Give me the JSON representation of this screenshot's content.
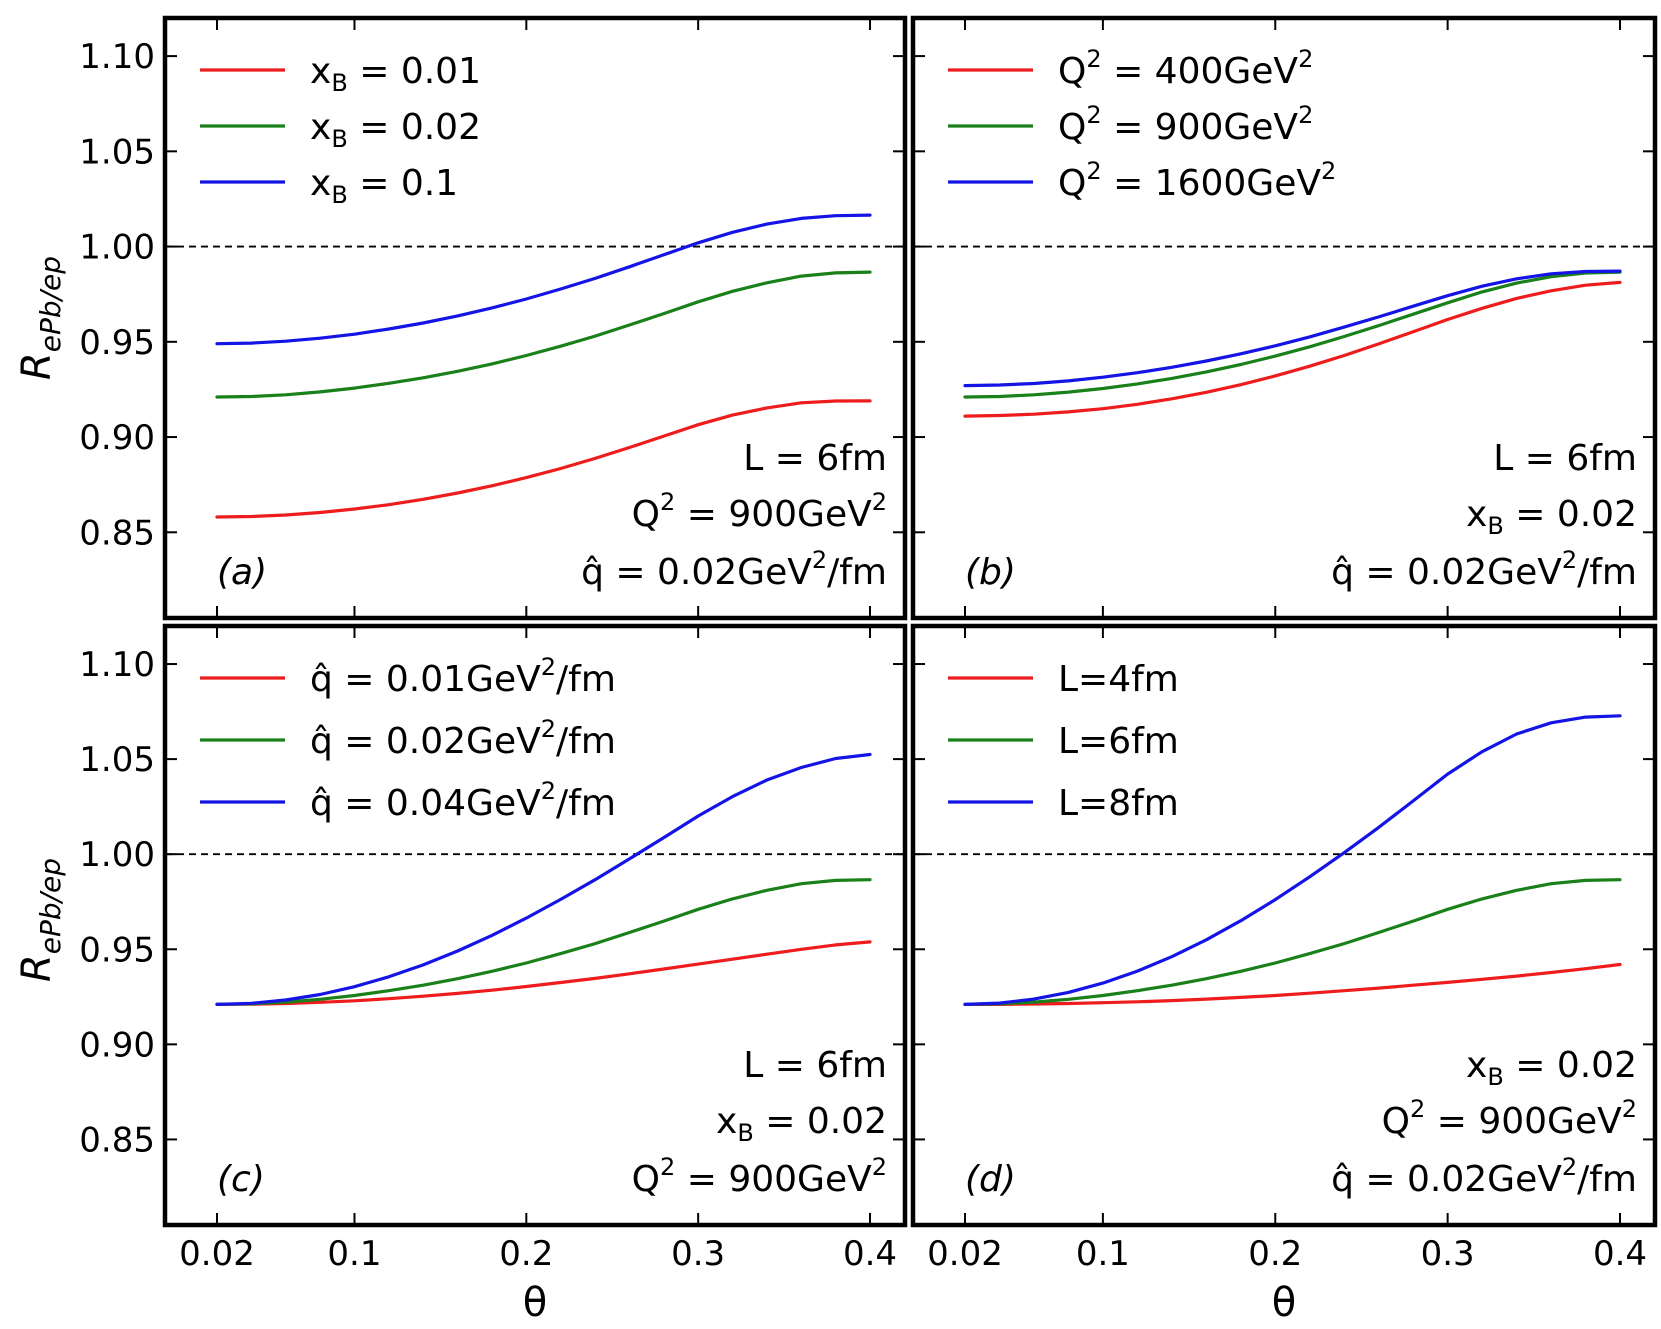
{
  "chart_data": {
    "type": "line",
    "x_axis_label": "θ",
    "y_axis_label": {
      "main": "R",
      "sub": "ePb/ep"
    },
    "x_ticks": [
      0.02,
      0.1,
      0.2,
      0.3,
      0.4
    ],
    "x_tick_labels": [
      "0.02",
      "0.1",
      "0.2",
      "0.3",
      "0.4"
    ],
    "y_ticks": [
      0.85,
      0.9,
      0.95,
      1.0,
      1.05,
      1.1
    ],
    "y_tick_labels": [
      "0.85",
      "0.90",
      "0.95",
      "1.00",
      "1.05",
      "1.10"
    ],
    "xlim": [
      0.0,
      0.42
    ],
    "ylim": [
      0.805,
      1.12
    ],
    "reference_line": 1.0,
    "x": [
      0.02,
      0.04,
      0.06,
      0.08,
      0.1,
      0.12,
      0.14,
      0.16,
      0.18,
      0.2,
      0.22,
      0.24,
      0.26,
      0.28,
      0.3,
      0.32,
      0.34,
      0.36,
      0.38,
      0.4
    ],
    "colors": {
      "red": "#ee1c1c",
      "green": "#1a801a",
      "blue": "#1414e6"
    },
    "panels": [
      {
        "id": "a",
        "label": "(a)",
        "series": [
          {
            "name": "x_B = 0.01",
            "legend": {
              "main": "x",
              "sub": "B",
              "rest": " = 0.01"
            },
            "color": "#ee1c1c",
            "values": [
              0.858,
              0.8583,
              0.8591,
              0.8604,
              0.8622,
              0.8645,
              0.8673,
              0.8706,
              0.8744,
              0.8787,
              0.8835,
              0.8888,
              0.8945,
              0.9005,
              0.9065,
              0.9115,
              0.9153,
              0.918,
              0.9189,
              0.919
            ]
          },
          {
            "name": "x_B = 0.02",
            "legend": {
              "main": "x",
              "sub": "B",
              "rest": " = 0.02"
            },
            "color": "#1a801a",
            "values": [
              0.921,
              0.9213,
              0.9222,
              0.9237,
              0.9257,
              0.9282,
              0.9311,
              0.9345,
              0.9384,
              0.9428,
              0.9477,
              0.953,
              0.9588,
              0.9648,
              0.971,
              0.9765,
              0.981,
              0.9845,
              0.9862,
              0.9866
            ]
          },
          {
            "name": "x_B = 0.1",
            "legend": {
              "main": "x",
              "sub": "B",
              "rest": " = 0.1"
            },
            "color": "#1414e6",
            "values": [
              0.949,
              0.9493,
              0.9503,
              0.9519,
              0.954,
              0.9567,
              0.9599,
              0.9636,
              0.9678,
              0.9725,
              0.9777,
              0.9833,
              0.9894,
              0.9957,
              1.002,
              1.0075,
              1.0118,
              1.0148,
              1.0162,
              1.0165
            ]
          }
        ],
        "annotations": [
          [
            {
              "t": "L = 6fm"
            }
          ],
          [
            {
              "t": "Q"
            },
            {
              "t": "2",
              "sup": true
            },
            {
              "t": " = 900GeV"
            },
            {
              "t": "2",
              "sup": true
            }
          ],
          [
            {
              "t": "q̂ = 0.02GeV"
            },
            {
              "t": "2",
              "sup": true
            },
            {
              "t": "/fm"
            }
          ]
        ]
      },
      {
        "id": "b",
        "label": "(b)",
        "series": [
          {
            "name": "Q^2 = 400GeV^2",
            "legend": {
              "main": "Q",
              "sup": "2",
              "rest": " = 400GeV",
              "sup2": "2"
            },
            "color": "#ee1c1c",
            "values": [
              0.911,
              0.9113,
              0.912,
              0.9132,
              0.9149,
              0.9172,
              0.9201,
              0.9235,
              0.9275,
              0.9321,
              0.9372,
              0.9428,
              0.9489,
              0.9553,
              0.9617,
              0.9676,
              0.9728,
              0.9768,
              0.9797,
              0.9812
            ]
          },
          {
            "name": "Q^2 = 900GeV^2",
            "legend": {
              "main": "Q",
              "sup": "2",
              "rest": " = 900GeV",
              "sup2": "2"
            },
            "color": "#1a801a",
            "values": [
              0.921,
              0.9213,
              0.9222,
              0.9236,
              0.9255,
              0.9279,
              0.9308,
              0.9342,
              0.9381,
              0.9425,
              0.9474,
              0.9528,
              0.9585,
              0.9645,
              0.9705,
              0.9762,
              0.9808,
              0.9842,
              0.9861,
              0.9866
            ]
          },
          {
            "name": "Q^2 = 1600GeV^2",
            "legend": {
              "main": "Q",
              "sup": "2",
              "rest": " = 1600GeV",
              "sup2": "2"
            },
            "color": "#1414e6",
            "values": [
              0.927,
              0.9273,
              0.9281,
              0.9295,
              0.9314,
              0.9338,
              0.9366,
              0.9399,
              0.9437,
              0.9479,
              0.9526,
              0.9577,
              0.9631,
              0.9687,
              0.9742,
              0.9792,
              0.9831,
              0.9857,
              0.9869,
              0.9871
            ]
          }
        ],
        "annotations": [
          [
            {
              "t": "L = 6fm"
            }
          ],
          [
            {
              "t": "x"
            },
            {
              "t": "B",
              "sub": true
            },
            {
              "t": " = 0.02"
            }
          ],
          [
            {
              "t": "q̂ = 0.02GeV"
            },
            {
              "t": "2",
              "sup": true
            },
            {
              "t": "/fm"
            }
          ]
        ]
      },
      {
        "id": "c",
        "label": "(c)",
        "series": [
          {
            "name": "q̂ = 0.01GeV^2/fm",
            "legend": {
              "main": "q̂ = 0.01GeV",
              "sup": "2",
              "rest": "/fm"
            },
            "color": "#ee1c1c",
            "values": [
              0.921,
              0.9211,
              0.9215,
              0.9221,
              0.9229,
              0.924,
              0.9253,
              0.9268,
              0.9285,
              0.9304,
              0.9325,
              0.9347,
              0.9371,
              0.9396,
              0.9422,
              0.9448,
              0.9474,
              0.95,
              0.9523,
              0.9539
            ]
          },
          {
            "name": "q̂ = 0.02GeV^2/fm",
            "legend": {
              "main": "q̂ = 0.02GeV",
              "sup": "2",
              "rest": "/fm"
            },
            "color": "#1a801a",
            "values": [
              0.921,
              0.9213,
              0.9222,
              0.9237,
              0.9257,
              0.9282,
              0.9311,
              0.9345,
              0.9384,
              0.9428,
              0.9477,
              0.953,
              0.9588,
              0.9648,
              0.971,
              0.9765,
              0.981,
              0.9845,
              0.9862,
              0.9866
            ]
          },
          {
            "name": "q̂ = 0.04GeV^2/fm",
            "legend": {
              "main": "q̂ = 0.04GeV",
              "sup": "2",
              "rest": "/fm"
            },
            "color": "#1414e6",
            "values": [
              0.921,
              0.9216,
              0.9233,
              0.9262,
              0.9303,
              0.9355,
              0.9418,
              0.9491,
              0.9573,
              0.9664,
              0.9762,
              0.9866,
              0.9975,
              1.0087,
              1.0201,
              1.0303,
              1.039,
              1.0456,
              1.0503,
              1.0524
            ]
          }
        ],
        "annotations": [
          [
            {
              "t": "L = 6fm"
            }
          ],
          [
            {
              "t": "x"
            },
            {
              "t": "B",
              "sub": true
            },
            {
              "t": " = 0.02"
            }
          ],
          [
            {
              "t": "Q"
            },
            {
              "t": "2",
              "sup": true
            },
            {
              "t": " = 900GeV"
            },
            {
              "t": "2",
              "sup": true
            }
          ]
        ]
      },
      {
        "id": "d",
        "label": "(d)",
        "series": [
          {
            "name": "L=4fm",
            "legend": {
              "main": "L=4fm"
            },
            "color": "#ee1c1c",
            "values": [
              0.921,
              0.921,
              0.9212,
              0.9215,
              0.9219,
              0.9224,
              0.923,
              0.9238,
              0.9247,
              0.9257,
              0.9269,
              0.9282,
              0.9296,
              0.9311,
              0.9326,
              0.9342,
              0.9359,
              0.9378,
              0.9398,
              0.942
            ]
          },
          {
            "name": "L=6fm",
            "legend": {
              "main": "L=6fm"
            },
            "color": "#1a801a",
            "values": [
              0.921,
              0.9213,
              0.9222,
              0.9237,
              0.9257,
              0.9282,
              0.9311,
              0.9345,
              0.9384,
              0.9428,
              0.9477,
              0.953,
              0.9588,
              0.9648,
              0.971,
              0.9765,
              0.981,
              0.9845,
              0.9862,
              0.9866
            ]
          },
          {
            "name": "L=8fm",
            "legend": {
              "main": "L=8fm"
            },
            "color": "#1414e6",
            "values": [
              0.921,
              0.9217,
              0.9238,
              0.9273,
              0.9322,
              0.9385,
              0.9461,
              0.955,
              0.965,
              0.9761,
              0.9881,
              1.0008,
              1.0141,
              1.028,
              1.0421,
              1.0539,
              1.0632,
              1.0691,
              1.0721,
              1.0728
            ]
          }
        ],
        "annotations": [
          [
            {
              "t": "x"
            },
            {
              "t": "B",
              "sub": true
            },
            {
              "t": " = 0.02"
            }
          ],
          [
            {
              "t": "Q"
            },
            {
              "t": "2",
              "sup": true
            },
            {
              "t": " = 900GeV"
            },
            {
              "t": "2",
              "sup": true
            }
          ],
          [
            {
              "t": "q̂ = 0.02GeV"
            },
            {
              "t": "2",
              "sup": true
            },
            {
              "t": "/fm"
            }
          ]
        ]
      }
    ]
  }
}
